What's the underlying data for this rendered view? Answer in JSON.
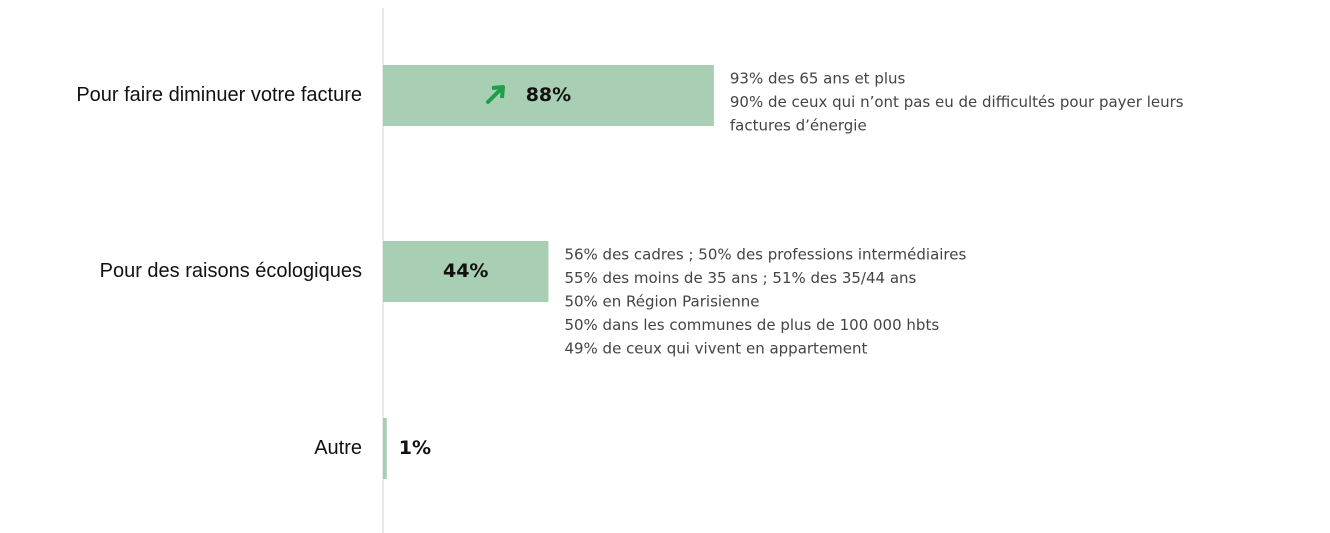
{
  "chart_data": {
    "type": "bar",
    "orientation": "horizontal",
    "categories": [
      "Pour faire diminuer votre facture",
      "Pour des raisons écologiques",
      "Autre"
    ],
    "values": [
      88,
      44,
      1
    ],
    "value_labels": [
      "88%",
      "44%",
      "1%"
    ],
    "color": "#a8cfb3",
    "annotations": [
      [
        "93% des 65 ans et plus",
        "90% de ceux qui n’ont pas eu de difficultés pour payer leurs",
        "factures d’énergie"
      ],
      [
        "56% des cadres ; 50% des professions intermédiaires",
        "55% des moins de 35 ans ; 51% des 35/44 ans",
        "50% en Région Parisienne",
        "50% dans les communes de plus de 100 000 hbts",
        "49% de ceux qui vivent en appartement"
      ],
      []
    ]
  }
}
